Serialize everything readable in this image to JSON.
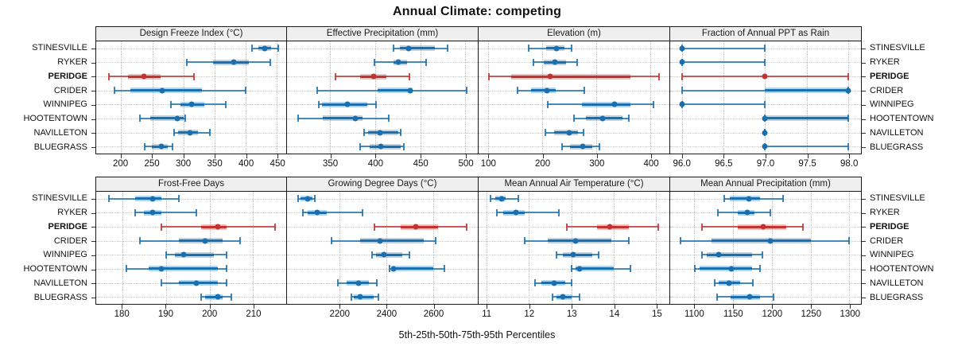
{
  "title": "Annual Climate: competing",
  "xlabel": "5th-25th-50th-75th-95th Percentiles",
  "colors": {
    "series_normal": "#1b6fae",
    "series_highlight": "#c0332e",
    "strip_bg": "#efefef",
    "grid": "#c4c4c4"
  },
  "cities": [
    "STINESVILLE",
    "RYKER",
    "PERIDGE",
    "CRIDER",
    "WINNIPEG",
    "HOOTENTOWN",
    "NAVILLETON",
    "BLUEGRASS"
  ],
  "highlight_city": "PERIDGE",
  "chart_data": {
    "type": "dotplot-intervals",
    "percentiles": [
      5,
      25,
      50,
      75,
      95
    ],
    "legend_note": "5th-25th-50th-75th-95th Percentiles",
    "grid": "dotted",
    "panels": [
      {
        "id": "design-freeze-index",
        "title": "Design Freeze Index (°C)",
        "row": "top",
        "xlim": [
          160,
          465
        ],
        "ticks": [
          200,
          250,
          300,
          350,
          400,
          450
        ],
        "tick_labels": [
          "200",
          "250",
          "300",
          "350",
          "400",
          "450"
        ],
        "series": [
          [
            410,
            420,
            431,
            441,
            452
          ],
          [
            306,
            347,
            381,
            405,
            439
          ],
          [
            181,
            211,
            237,
            264,
            317
          ],
          [
            189,
            215,
            266,
            330,
            400
          ],
          [
            280,
            295,
            313,
            334,
            368
          ],
          [
            230,
            247,
            290,
            300,
            303
          ],
          [
            285,
            292,
            311,
            324,
            342
          ],
          [
            238,
            249,
            265,
            275,
            283
          ]
        ]
      },
      {
        "id": "effective-precipitation",
        "title": "Effective Precipitation (mm)",
        "row": "top",
        "xlim": [
          302,
          514
        ],
        "ticks": [
          350,
          400,
          450,
          500
        ],
        "tick_labels": [
          "350",
          "400",
          "450",
          "500"
        ],
        "series": [
          [
            420,
            427,
            437,
            466,
            480
          ],
          [
            399,
            420,
            426,
            435,
            457
          ],
          [
            356,
            383,
            398,
            412,
            438
          ],
          [
            336,
            403,
            439,
            442,
            502
          ],
          [
            337,
            341,
            369,
            391,
            401
          ],
          [
            314,
            342,
            378,
            386,
            415
          ],
          [
            388,
            392,
            405,
            426,
            428
          ],
          [
            383,
            394,
            406,
            428,
            432
          ]
        ]
      },
      {
        "id": "elevation",
        "title": "Elevation (m)",
        "row": "top",
        "xlim": [
          82,
          435
        ],
        "ticks": [
          100,
          200,
          300,
          400
        ],
        "tick_labels": [
          "100",
          "200",
          "300",
          "400"
        ],
        "series": [
          [
            174,
            207,
            226,
            241,
            254
          ],
          [
            183,
            202,
            223,
            244,
            265
          ],
          [
            101,
            142,
            215,
            363,
            416
          ],
          [
            154,
            179,
            208,
            224,
            277
          ],
          [
            210,
            273,
            333,
            363,
            406
          ],
          [
            258,
            281,
            311,
            348,
            360
          ],
          [
            206,
            221,
            250,
            266,
            276
          ],
          [
            236,
            251,
            274,
            293,
            306
          ]
        ]
      },
      {
        "id": "fraction-annual-ppt-rain",
        "title": "Fraction of Annual PPT as Rain",
        "row": "top",
        "xlim": [
          95.86,
          98.15
        ],
        "ticks": [
          96.0,
          96.5,
          97.0,
          97.5,
          98.0
        ],
        "tick_labels": [
          "96.0",
          "96.5",
          "97.0",
          "97.5",
          "98.0"
        ],
        "series": [
          [
            96,
            96,
            96,
            96,
            97
          ],
          [
            96,
            96,
            96,
            96,
            97
          ],
          [
            96,
            97,
            97,
            97,
            98
          ],
          [
            96,
            97,
            98,
            98,
            98
          ],
          [
            96,
            96,
            96,
            96,
            97
          ],
          [
            97,
            97,
            97,
            98,
            98
          ],
          [
            97,
            97,
            97,
            97,
            97
          ],
          [
            97,
            97,
            97,
            97,
            98
          ]
        ]
      },
      {
        "id": "frost-free-days",
        "title": "Frost-Free Days",
        "row": "bottom",
        "xlim": [
          174,
          217.6
        ],
        "ticks": [
          180,
          190,
          200,
          210
        ],
        "tick_labels": [
          "180",
          "190",
          "200",
          "210"
        ],
        "series": [
          [
            177,
            183,
            187,
            189,
            193
          ],
          [
            183,
            185,
            187,
            189,
            197
          ],
          [
            189,
            198,
            202,
            204,
            215
          ],
          [
            184,
            193,
            199,
            203,
            207
          ],
          [
            190,
            192,
            194,
            201,
            204
          ],
          [
            181,
            186,
            189,
            202,
            204
          ],
          [
            189,
            193,
            197,
            202,
            204
          ],
          [
            198,
            199,
            202,
            203,
            205
          ]
        ]
      },
      {
        "id": "growing-degree-days",
        "title": "Growing Degree Days (°C)",
        "row": "bottom",
        "xlim": [
          1976,
          2791
        ],
        "ticks": [
          2200,
          2400,
          2600
        ],
        "tick_labels": [
          "2200",
          "2400",
          "2600"
        ],
        "series": [
          [
            2025,
            2035,
            2065,
            2085,
            2095
          ],
          [
            2045,
            2065,
            2105,
            2145,
            2300
          ],
          [
            2350,
            2460,
            2525,
            2620,
            2745
          ],
          [
            2165,
            2290,
            2375,
            2560,
            2610
          ],
          [
            2340,
            2355,
            2390,
            2470,
            2500
          ],
          [
            2415,
            2420,
            2430,
            2600,
            2650
          ],
          [
            2195,
            2230,
            2280,
            2325,
            2360
          ],
          [
            2250,
            2260,
            2287,
            2345,
            2365
          ]
        ]
      },
      {
        "id": "mean-annual-air-temperature",
        "title": "Mean Annual Air Temperature (°C)",
        "row": "bottom",
        "xlim": [
          10.81,
          15.31
        ],
        "ticks": [
          11,
          12,
          13,
          14,
          15
        ],
        "tick_labels": [
          "11",
          "12",
          "13",
          "14",
          "15"
        ],
        "series": [
          [
            11.1,
            11.2,
            11.35,
            11.45,
            11.75
          ],
          [
            11.25,
            11.4,
            11.7,
            11.9,
            12.7
          ],
          [
            12.9,
            13.6,
            13.9,
            14.35,
            15.05
          ],
          [
            11.9,
            12.45,
            13.1,
            13.95,
            14.35
          ],
          [
            12.65,
            12.8,
            13.05,
            13.5,
            13.65
          ],
          [
            13.0,
            13.1,
            13.2,
            14.0,
            14.4
          ],
          [
            12.15,
            12.3,
            12.6,
            12.85,
            13.0
          ],
          [
            12.55,
            12.65,
            12.8,
            13.0,
            13.2
          ]
        ]
      },
      {
        "id": "mean-annual-precipitation",
        "title": "Mean Annual Precipitation (mm)",
        "row": "bottom",
        "xlim": [
          1069,
          1315
        ],
        "ticks": [
          1100,
          1150,
          1200,
          1250,
          1300
        ],
        "tick_labels": [
          "1100",
          "1150",
          "1200",
          "1250",
          "1300"
        ],
        "series": [
          [
            1139,
            1146,
            1170,
            1185,
            1215
          ],
          [
            1131,
            1156,
            1168,
            1178,
            1198
          ],
          [
            1110,
            1156,
            1189,
            1219,
            1240
          ],
          [
            1082,
            1122,
            1198,
            1250,
            1300
          ],
          [
            1110,
            1116,
            1132,
            1175,
            1188
          ],
          [
            1101,
            1107,
            1148,
            1175,
            1185
          ],
          [
            1126,
            1132,
            1145,
            1159,
            1176
          ],
          [
            1129,
            1147,
            1171,
            1185,
            1202
          ]
        ]
      }
    ]
  }
}
